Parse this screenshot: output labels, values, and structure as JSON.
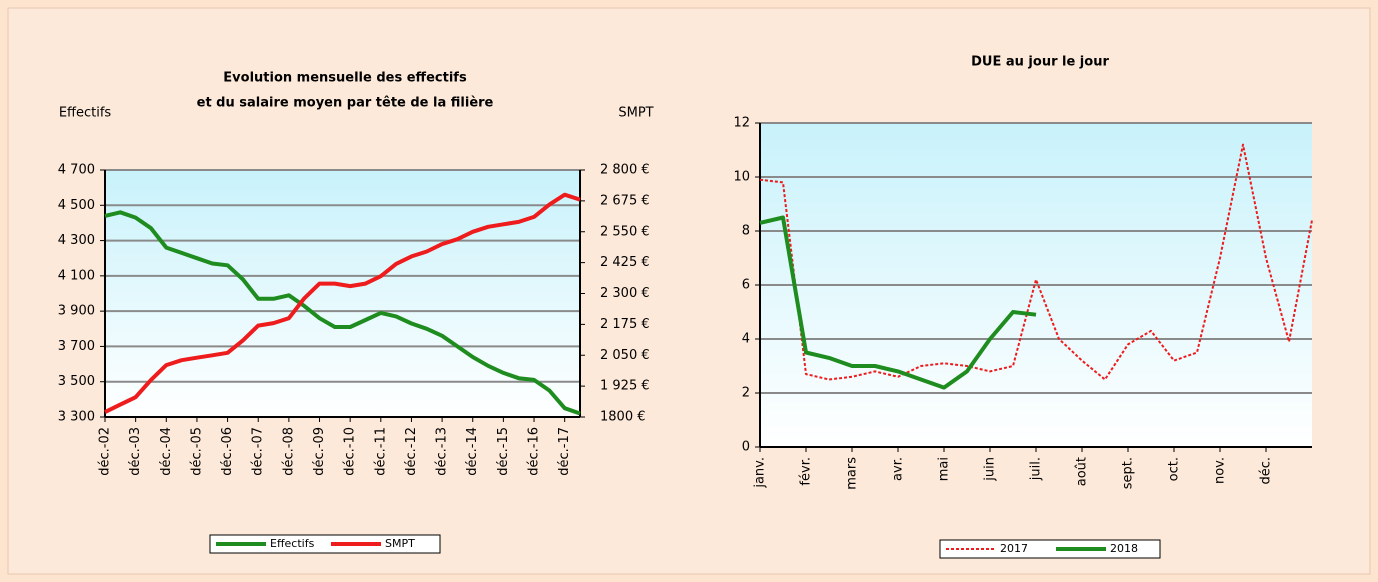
{
  "chart_data": [
    {
      "type": "line",
      "title": [
        "Evolution mensuelle des effectifs",
        "et du salaire moyen par tête de la filière"
      ],
      "ylabel": "Effectifs",
      "y2label": "SMPT",
      "categories": [
        "déc.-02",
        null,
        "déc.-03",
        null,
        "déc.-04",
        null,
        "déc.-05",
        null,
        "déc.-06",
        null,
        "déc.-07",
        null,
        "déc.-08",
        null,
        "déc.-09",
        null,
        "déc.-10",
        null,
        "déc.-11",
        null,
        "déc.-12",
        null,
        "déc.-13",
        null,
        "déc.-14",
        null,
        "déc.-15",
        null,
        "déc.-16",
        null,
        "déc.-17",
        null
      ],
      "series": [
        {
          "name": "Effectifs",
          "color": "#1e8c1e",
          "values": [
            4440,
            4460,
            4430,
            4370,
            4260,
            4230,
            4200,
            4170,
            4160,
            4080,
            3970,
            3970,
            3990,
            3930,
            3860,
            3810,
            3810,
            3850,
            3890,
            3870,
            3830,
            3800,
            3760,
            3700,
            3640,
            3590,
            3550,
            3520,
            3510,
            3450,
            3350,
            3320
          ]
        },
        {
          "name": "SMPT",
          "color": "#ee1c1c",
          "axis": "y2",
          "values": [
            1820,
            1850,
            1880,
            1950,
            2010,
            2030,
            2040,
            2050,
            2060,
            2110,
            2170,
            2180,
            2200,
            2280,
            2340,
            2340,
            2330,
            2340,
            2370,
            2420,
            2450,
            2470,
            2500,
            2520,
            2550,
            2570,
            2580,
            2590,
            2610,
            2660,
            2700,
            2680
          ]
        }
      ],
      "ylim": [
        3300,
        4700
      ],
      "yticks": [
        {
          "value": 3300,
          "label": "3 300"
        },
        {
          "value": 3500,
          "label": "3 500"
        },
        {
          "value": 3700,
          "label": "3 700"
        },
        {
          "value": 3900,
          "label": "3 900"
        },
        {
          "value": 4100,
          "label": "4 100"
        },
        {
          "value": 4300,
          "label": "4 300"
        },
        {
          "value": 4500,
          "label": "4 500"
        },
        {
          "value": 4700,
          "label": "4 700"
        }
      ],
      "y2lim": [
        1800,
        2800
      ],
      "y2ticks": [
        {
          "value": 1800,
          "label": "1800 €"
        },
        {
          "value": 1925,
          "label": "1 925 €"
        },
        {
          "value": 2050,
          "label": "2 050 €"
        },
        {
          "value": 2175,
          "label": "2 175 €"
        },
        {
          "value": 2300,
          "label": "2 300 €"
        },
        {
          "value": 2425,
          "label": "2 425 €"
        },
        {
          "value": 2550,
          "label": "2 550 €"
        },
        {
          "value": 2675,
          "label": "2 675 €"
        },
        {
          "value": 2800,
          "label": "2 800 €"
        }
      ],
      "grid": true,
      "legend": "bottom"
    },
    {
      "type": "line",
      "title": [
        "DUE au jour le jour"
      ],
      "categories": [
        "janv.",
        null,
        "févr.",
        null,
        "mars",
        null,
        "avr.",
        null,
        "mai",
        null,
        "juin",
        null,
        "juil.",
        null,
        "août",
        null,
        "sept.",
        null,
        "oct.",
        null,
        "nov.",
        null,
        "déc.",
        null,
        null
      ],
      "series": [
        {
          "name": "2017",
          "color": "#ee1c1c",
          "line_style": "dotted",
          "values": [
            9.9,
            9.8,
            2.7,
            2.5,
            2.6,
            2.8,
            2.6,
            3.0,
            3.1,
            3.0,
            2.8,
            3.0,
            6.2,
            4.0,
            3.2,
            2.5,
            3.8,
            4.3,
            3.2,
            3.5,
            7.0,
            11.2,
            7.0,
            3.9,
            8.4
          ]
        },
        {
          "name": "2018",
          "color": "#1e8c1e",
          "line_style": "solid",
          "values": [
            8.3,
            8.5,
            3.5,
            3.3,
            3.0,
            3.0,
            2.8,
            2.5,
            2.2,
            2.8,
            4.0,
            5.0,
            4.9,
            null,
            null,
            null,
            null,
            null,
            null,
            null,
            null,
            null,
            null,
            null,
            null
          ]
        }
      ],
      "ylim": [
        0,
        12
      ],
      "yticks": [
        0,
        2,
        4,
        6,
        8,
        10,
        12
      ],
      "grid": true,
      "legend": "bottom"
    }
  ]
}
